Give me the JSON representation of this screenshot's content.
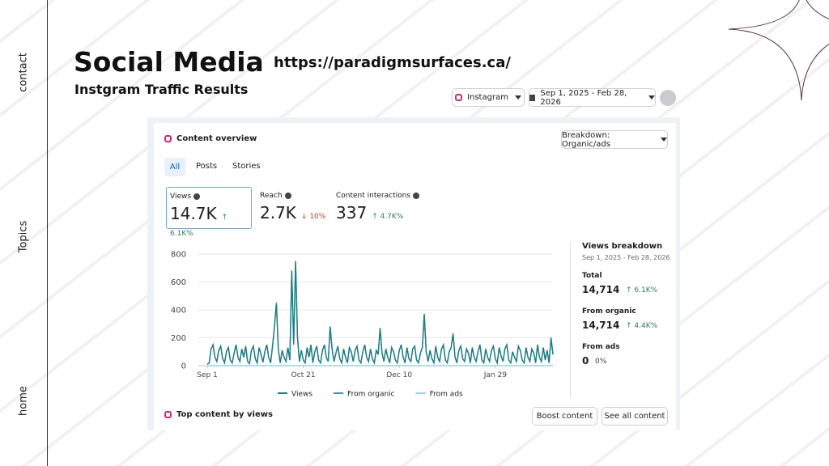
{
  "slide": {
    "title": "Social Media",
    "subtitle": "Instgram Traffic Results",
    "url": "https://paradigmsurfaces.ca/",
    "nav": [
      "contact",
      "Topics",
      "home"
    ]
  },
  "dashboard": {
    "platform": "Instagram",
    "date_range": "Sep 1, 2025 - Feb 28, 2026",
    "card_title": "Content overview",
    "breakdown": "Breakdown: Organic/ads",
    "tabs": [
      "All",
      "Posts",
      "Stories"
    ],
    "metrics": [
      {
        "label": "Views",
        "value": "14.7K",
        "change": "↑ 6.1K%"
      },
      {
        "label": "Reach",
        "value": "2.7K",
        "change": "↓ 10%"
      },
      {
        "label": "Content interactions",
        "value": "337",
        "change": "↑ 4.7K%"
      }
    ],
    "chart": {
      "type": "line",
      "ylim": [
        0,
        800
      ],
      "yticks": [
        0,
        200,
        400,
        600,
        800
      ],
      "xlim": [
        0,
        180
      ],
      "xticks": [
        {
          "value": 0,
          "label": "Sep 1"
        },
        {
          "value": 50,
          "label": "Oct 21"
        },
        {
          "value": 100,
          "label": "Dec 10"
        },
        {
          "value": 150,
          "label": "Jan 29"
        }
      ],
      "series": [
        {
          "name": "Views",
          "color": "#1f7d80",
          "values": [
            10,
            20,
            120,
            150,
            60,
            30,
            110,
            140,
            50,
            20,
            100,
            130,
            40,
            20,
            90,
            150,
            60,
            30,
            120,
            60,
            140,
            30,
            15,
            110,
            140,
            50,
            20,
            130,
            80,
            25,
            100,
            150,
            60,
            20,
            140,
            280,
            450,
            120,
            20,
            110,
            60,
            30,
            130,
            40,
            680,
            150,
            750,
            200,
            30,
            110,
            40,
            20,
            130,
            60,
            150,
            20,
            100,
            140,
            40,
            20,
            110,
            150,
            60,
            30,
            280,
            120,
            30,
            90,
            140,
            50,
            20,
            120,
            60,
            20,
            130,
            100,
            30,
            110,
            140,
            40,
            20,
            100,
            150,
            60,
            30,
            120,
            50,
            20,
            110,
            80,
            270,
            90,
            30,
            120,
            60,
            20,
            130,
            100,
            40,
            20,
            110,
            150,
            60,
            20,
            130,
            50,
            30,
            120,
            140,
            40,
            20,
            90,
            130,
            370,
            100,
            30,
            110,
            50,
            20,
            140,
            60,
            30,
            120,
            150,
            40,
            20,
            100,
            130,
            230,
            60,
            20,
            110,
            140,
            50,
            30,
            120,
            90,
            20,
            130,
            60,
            30,
            100,
            150,
            40,
            20,
            120,
            60,
            30,
            110,
            140,
            50,
            20,
            130,
            70,
            30,
            120,
            150,
            40,
            20,
            100,
            60,
            30,
            140,
            110,
            40,
            20,
            130,
            60,
            30,
            120,
            90,
            20,
            150,
            60,
            30,
            130,
            40,
            110,
            20,
            200,
            80
          ]
        },
        {
          "name": "From organic",
          "color": "#3b8fc6",
          "values": [
            10,
            20,
            120,
            150,
            60,
            30,
            110,
            140,
            50,
            20,
            100,
            130,
            40,
            20,
            90,
            150,
            60,
            30,
            120,
            60,
            140,
            30,
            15,
            110,
            140,
            50,
            20,
            130,
            80,
            25,
            100,
            150,
            60,
            20,
            140,
            280,
            450,
            120,
            20,
            110,
            60,
            30,
            130,
            40,
            680,
            150,
            750,
            200,
            30,
            110,
            40,
            20,
            130,
            60,
            150,
            20,
            100,
            140,
            40,
            20,
            110,
            150,
            60,
            30,
            280,
            120,
            30,
            90,
            140,
            50,
            20,
            120,
            60,
            20,
            130,
            100,
            30,
            110,
            140,
            40,
            20,
            100,
            150,
            60,
            30,
            120,
            50,
            20,
            110,
            80,
            270,
            90,
            30,
            120,
            60,
            20,
            130,
            100,
            40,
            20,
            110,
            150,
            60,
            20,
            130,
            50,
            30,
            120,
            140,
            40,
            20,
            90,
            130,
            370,
            100,
            30,
            110,
            50,
            20,
            140,
            60,
            30,
            120,
            150,
            40,
            20,
            100,
            130,
            230,
            60,
            20,
            110,
            140,
            50,
            30,
            120,
            90,
            20,
            130,
            60,
            30,
            100,
            150,
            40,
            20,
            120,
            60,
            30,
            110,
            140,
            50,
            20,
            130,
            70,
            30,
            120,
            150,
            40,
            20,
            100,
            60,
            30,
            140,
            110,
            40,
            20,
            130,
            60,
            30,
            120,
            90,
            20,
            150,
            60,
            30,
            130,
            40,
            110,
            20,
            200,
            80
          ]
        },
        {
          "name": "From ads",
          "color": "#93d3ea",
          "values": [
            0,
            0,
            0,
            0,
            0,
            0,
            0,
            0,
            0,
            0,
            0,
            0,
            0,
            0,
            0,
            0,
            0,
            0,
            0,
            0,
            0,
            0,
            0,
            0,
            0,
            0,
            0,
            0,
            0,
            0,
            0,
            0,
            0,
            0,
            0,
            0,
            0,
            0,
            0,
            0,
            0,
            0,
            0,
            0,
            0,
            0,
            0,
            0,
            0,
            0,
            0,
            0,
            0,
            0,
            0,
            0,
            0,
            0,
            0,
            0,
            0,
            0,
            0,
            0,
            0,
            0,
            0,
            0,
            0,
            0,
            0,
            0,
            0,
            0,
            0,
            0,
            0,
            0,
            0,
            0,
            0,
            0,
            0,
            0,
            0,
            0,
            0,
            0,
            0,
            0,
            0,
            0,
            0,
            0,
            0,
            0,
            0,
            0,
            0,
            0,
            0,
            0,
            0,
            0,
            0,
            0,
            0,
            0,
            0,
            0,
            0,
            0,
            0,
            0,
            0,
            0,
            0,
            0,
            0,
            0,
            0,
            0,
            0,
            0,
            0,
            0,
            0,
            0,
            0,
            0,
            0,
            0,
            0,
            0,
            0,
            0,
            0,
            0,
            0,
            0,
            0,
            0,
            0,
            0,
            0,
            0,
            0,
            0,
            0,
            0,
            0,
            0,
            0,
            0,
            0,
            0,
            0,
            0,
            0,
            0,
            0,
            0,
            0,
            0,
            0,
            0,
            0,
            0,
            0,
            0,
            0,
            0,
            0,
            0,
            0,
            0,
            0,
            0,
            0,
            0,
            0
          ]
        }
      ]
    },
    "breakdown_panel": {
      "title": "Views breakdown",
      "date_range": "Sep 1, 2025 - Feb 28, 2026",
      "rows": [
        {
          "label": "Total",
          "value": "14,714",
          "change": "↑ 6.1K%"
        },
        {
          "label": "From organic",
          "value": "14,714",
          "change": "↑ 4.4K%"
        },
        {
          "label": "From ads",
          "value": "0",
          "change": "0%"
        }
      ]
    },
    "top_content_title": "Top content by views",
    "buttons": [
      "Boost content",
      "See all content"
    ]
  }
}
